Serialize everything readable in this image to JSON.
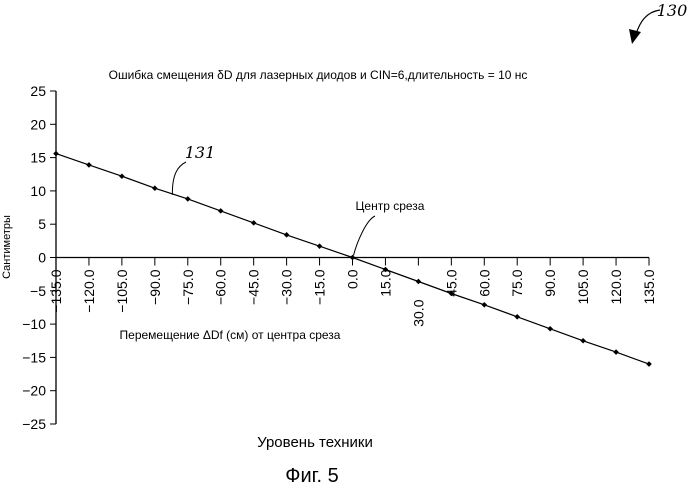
{
  "figure": {
    "reference_number": "130",
    "caption": "Фиг. 5"
  },
  "chart_data": {
    "type": "line",
    "title": "Ошибка смещения δD для лазерных диодов и CIN=6,длительность = 10 нс",
    "xlabel": "Перемещение  ΔDf (см) от центра среза",
    "ylabel": "Сантиметры",
    "footer_label": "Уровень техники",
    "xlim": [
      -135,
      135
    ],
    "ylim": [
      -25,
      25
    ],
    "x_ticks": [
      -135,
      -120,
      -105,
      -90,
      -75,
      -60,
      -45,
      -30,
      -15,
      0,
      15,
      30,
      45,
      60,
      75,
      90,
      105,
      120,
      135
    ],
    "x_tick_labels": [
      "−135.0",
      "−120.0",
      "−105.0",
      "−90.0",
      "−75.0",
      "−60.0",
      "−45.0",
      "−30.0",
      "−15.0",
      "0.0",
      "15.0",
      "30.0",
      "45.0",
      "60.0",
      "75.0",
      "90.0",
      "105.0",
      "120.0",
      "135.0"
    ],
    "y_ticks": [
      25,
      20,
      15,
      10,
      5,
      0,
      -5,
      -10,
      -15,
      -20,
      -25
    ],
    "y_tick_labels": [
      "25",
      "20",
      "15",
      "10",
      "5",
      "0",
      "−5",
      "−10",
      "−15",
      "−20",
      "−25"
    ],
    "series": [
      {
        "name": "131",
        "x": [
          -135,
          -120,
          -105,
          -90,
          -75,
          -60,
          -45,
          -30,
          -15,
          0,
          15,
          30,
          45,
          60,
          75,
          90,
          105,
          120,
          135
        ],
        "y": [
          15.6,
          13.9,
          12.2,
          10.4,
          8.8,
          7.0,
          5.2,
          3.4,
          1.7,
          0,
          -1.8,
          -3.6,
          -5.4,
          -7.1,
          -8.9,
          -10.7,
          -12.5,
          -14.2,
          -16.0
        ]
      }
    ],
    "annotations": [
      {
        "text": "Центр среза",
        "x": 0,
        "y": 0
      }
    ],
    "grid": false,
    "marker": "diamond",
    "color": "#000000"
  }
}
